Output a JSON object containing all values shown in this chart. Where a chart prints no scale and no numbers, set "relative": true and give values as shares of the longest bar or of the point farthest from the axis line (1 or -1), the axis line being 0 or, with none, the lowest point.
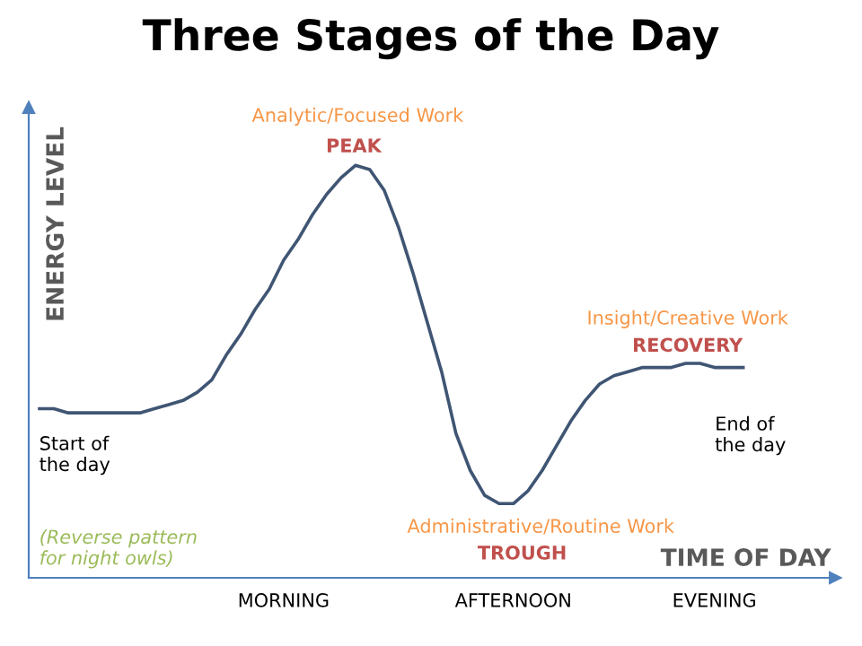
{
  "chart_data": {
    "type": "line",
    "relative": true,
    "title": "Three Stages of the Day",
    "xlabel": "TIME OF DAY",
    "ylabel": "ENERGY LEVEL",
    "categories": [
      null,
      null,
      null,
      null,
      null,
      null,
      null,
      null,
      null,
      null,
      null,
      null,
      null,
      null,
      null,
      null,
      null,
      "MORNING",
      null,
      null,
      null,
      null,
      null,
      null,
      null,
      null,
      null,
      null,
      null,
      null,
      null,
      null,
      null,
      "AFTERNOON",
      null,
      null,
      null,
      null,
      null,
      null,
      null,
      null,
      null,
      null,
      null,
      null,
      null,
      "EVENING",
      null,
      null
    ],
    "tick_labels": "x",
    "grid": false,
    "marker": "none",
    "line_style": "solid",
    "series": [
      {
        "color": "#3f5573",
        "values": [
          0.41,
          0.41,
          0.4,
          0.4,
          0.4,
          0.4,
          0.4,
          0.4,
          0.41,
          0.42,
          0.43,
          0.45,
          0.48,
          0.54,
          0.59,
          0.65,
          0.7,
          0.77,
          0.82,
          0.88,
          0.93,
          0.97,
          1.0,
          0.99,
          0.94,
          0.85,
          0.74,
          0.62,
          0.5,
          0.35,
          0.26,
          0.2,
          0.18,
          0.18,
          0.21,
          0.26,
          0.32,
          0.38,
          0.43,
          0.47,
          0.49,
          0.5,
          0.51,
          0.51,
          0.51,
          0.52,
          0.52,
          0.51,
          0.51,
          0.51
        ]
      }
    ],
    "annotations": [
      "Analytic/Focused Work",
      "PEAK",
      "Insight/Creative Work",
      "RECOVERY",
      "Administrative/Routine Work",
      "TROUGH",
      "Start of\nthe day",
      "End of\nthe day",
      "(Reverse pattern\nfor night owls)"
    ]
  }
}
